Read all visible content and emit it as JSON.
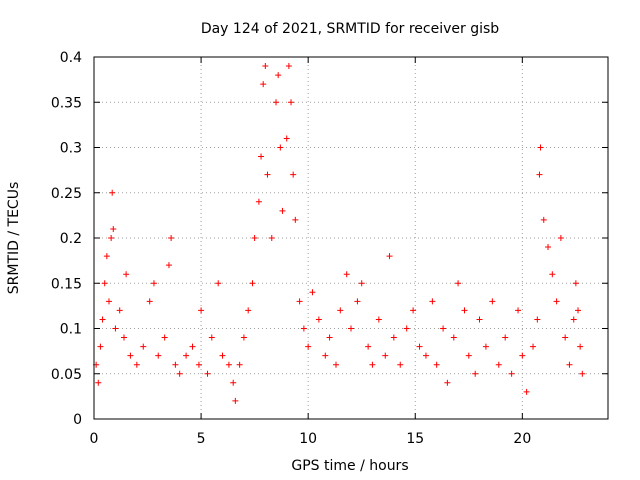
{
  "chart_data": {
    "type": "scatter",
    "title": "Day 124 of 2021, SRMTID for receiver gisb",
    "xlabel": "GPS time / hours",
    "ylabel": "SRMTID / TECUs",
    "xlim": [
      0,
      24
    ],
    "ylim": [
      0,
      0.4
    ],
    "xticks": [
      0,
      5,
      10,
      15,
      20
    ],
    "xtick_labels": [
      "0",
      "5",
      "10",
      "15",
      "20"
    ],
    "yticks": [
      0,
      0.05,
      0.1,
      0.15,
      0.2,
      0.25,
      0.3,
      0.35,
      0.4
    ],
    "ytick_labels": [
      "0",
      "0.05",
      "0.1",
      "0.15",
      "0.2",
      "0.25",
      "0.3",
      "0.35",
      "0.4"
    ],
    "grid": true,
    "marker": "plus",
    "color": "#ff0000",
    "series": [
      {
        "name": "SRMTID",
        "points": [
          [
            0.1,
            0.06
          ],
          [
            0.2,
            0.04
          ],
          [
            0.3,
            0.08
          ],
          [
            0.4,
            0.11
          ],
          [
            0.5,
            0.15
          ],
          [
            0.6,
            0.18
          ],
          [
            0.7,
            0.13
          ],
          [
            0.8,
            0.2
          ],
          [
            0.85,
            0.25
          ],
          [
            0.9,
            0.21
          ],
          [
            1.0,
            0.1
          ],
          [
            1.2,
            0.12
          ],
          [
            1.4,
            0.09
          ],
          [
            1.5,
            0.16
          ],
          [
            1.7,
            0.07
          ],
          [
            2.0,
            0.06
          ],
          [
            2.3,
            0.08
          ],
          [
            2.6,
            0.13
          ],
          [
            2.8,
            0.15
          ],
          [
            3.0,
            0.07
          ],
          [
            3.3,
            0.09
          ],
          [
            3.5,
            0.17
          ],
          [
            3.6,
            0.2
          ],
          [
            3.8,
            0.06
          ],
          [
            4.0,
            0.05
          ],
          [
            4.3,
            0.07
          ],
          [
            4.6,
            0.08
          ],
          [
            4.9,
            0.06
          ],
          [
            5.0,
            0.12
          ],
          [
            5.3,
            0.05
          ],
          [
            5.5,
            0.09
          ],
          [
            5.8,
            0.15
          ],
          [
            6.0,
            0.07
          ],
          [
            6.3,
            0.06
          ],
          [
            6.5,
            0.04
          ],
          [
            6.6,
            0.02
          ],
          [
            6.8,
            0.06
          ],
          [
            7.0,
            0.09
          ],
          [
            7.2,
            0.12
          ],
          [
            7.4,
            0.15
          ],
          [
            7.5,
            0.2
          ],
          [
            7.7,
            0.24
          ],
          [
            7.8,
            0.29
          ],
          [
            7.9,
            0.37
          ],
          [
            8.0,
            0.39
          ],
          [
            8.1,
            0.27
          ],
          [
            8.3,
            0.2
          ],
          [
            8.5,
            0.35
          ],
          [
            8.6,
            0.38
          ],
          [
            8.7,
            0.3
          ],
          [
            8.8,
            0.23
          ],
          [
            9.0,
            0.31
          ],
          [
            9.1,
            0.39
          ],
          [
            9.2,
            0.35
          ],
          [
            9.3,
            0.27
          ],
          [
            9.4,
            0.22
          ],
          [
            9.6,
            0.13
          ],
          [
            9.8,
            0.1
          ],
          [
            10.0,
            0.08
          ],
          [
            10.2,
            0.14
          ],
          [
            10.5,
            0.11
          ],
          [
            10.8,
            0.07
          ],
          [
            11.0,
            0.09
          ],
          [
            11.3,
            0.06
          ],
          [
            11.5,
            0.12
          ],
          [
            11.8,
            0.16
          ],
          [
            12.0,
            0.1
          ],
          [
            12.3,
            0.13
          ],
          [
            12.5,
            0.15
          ],
          [
            12.8,
            0.08
          ],
          [
            13.0,
            0.06
          ],
          [
            13.3,
            0.11
          ],
          [
            13.6,
            0.07
          ],
          [
            13.8,
            0.18
          ],
          [
            14.0,
            0.09
          ],
          [
            14.3,
            0.06
          ],
          [
            14.6,
            0.1
          ],
          [
            14.9,
            0.12
          ],
          [
            15.2,
            0.08
          ],
          [
            15.5,
            0.07
          ],
          [
            15.8,
            0.13
          ],
          [
            16.0,
            0.06
          ],
          [
            16.3,
            0.1
          ],
          [
            16.5,
            0.04
          ],
          [
            16.8,
            0.09
          ],
          [
            17.0,
            0.15
          ],
          [
            17.3,
            0.12
          ],
          [
            17.5,
            0.07
          ],
          [
            17.8,
            0.05
          ],
          [
            18.0,
            0.11
          ],
          [
            18.3,
            0.08
          ],
          [
            18.6,
            0.13
          ],
          [
            18.9,
            0.06
          ],
          [
            19.2,
            0.09
          ],
          [
            19.5,
            0.05
          ],
          [
            19.8,
            0.12
          ],
          [
            20.0,
            0.07
          ],
          [
            20.2,
            0.03
          ],
          [
            20.5,
            0.08
          ],
          [
            20.7,
            0.11
          ],
          [
            20.8,
            0.27
          ],
          [
            20.85,
            0.3
          ],
          [
            21.0,
            0.22
          ],
          [
            21.2,
            0.19
          ],
          [
            21.4,
            0.16
          ],
          [
            21.6,
            0.13
          ],
          [
            21.8,
            0.2
          ],
          [
            22.0,
            0.09
          ],
          [
            22.2,
            0.06
          ],
          [
            22.4,
            0.11
          ],
          [
            22.5,
            0.15
          ],
          [
            22.6,
            0.12
          ],
          [
            22.7,
            0.08
          ],
          [
            22.8,
            0.05
          ]
        ]
      }
    ]
  }
}
